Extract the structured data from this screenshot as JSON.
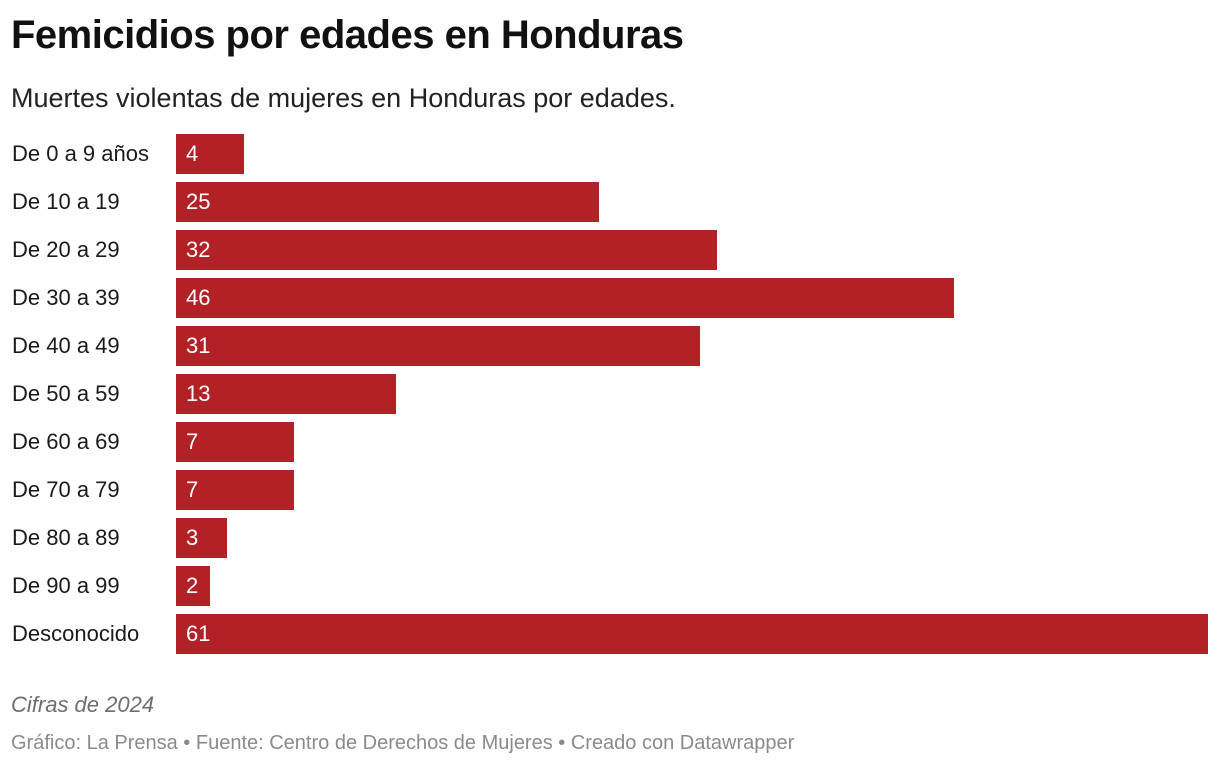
{
  "colors": {
    "bar": "#b22125",
    "value_text": "#ffffff"
  },
  "chart_data": {
    "type": "bar",
    "orientation": "horizontal",
    "title": "Femicidios por edades en Honduras",
    "subtitle": "Muertes violentas de mujeres en Honduras por edades.",
    "categories": [
      "De 0 a 9 años",
      "De 10 a 19",
      "De 20 a 29",
      "De 30 a 39",
      "De 40 a 49",
      "De 50 a 59",
      "De 60 a 69",
      "De 70 a 79",
      "De 80 a 89",
      "De 90 a 99",
      "Desconocido"
    ],
    "values": [
      4,
      25,
      32,
      46,
      31,
      13,
      7,
      7,
      3,
      2,
      61
    ],
    "xlim": [
      0,
      61
    ],
    "xlabel": "",
    "ylabel": "",
    "grid": false
  },
  "notes": "Cifras de 2024",
  "footer": "Gráfico: La Prensa • Fuente: Centro de Derechos de Mujeres • Creado con Datawrapper"
}
